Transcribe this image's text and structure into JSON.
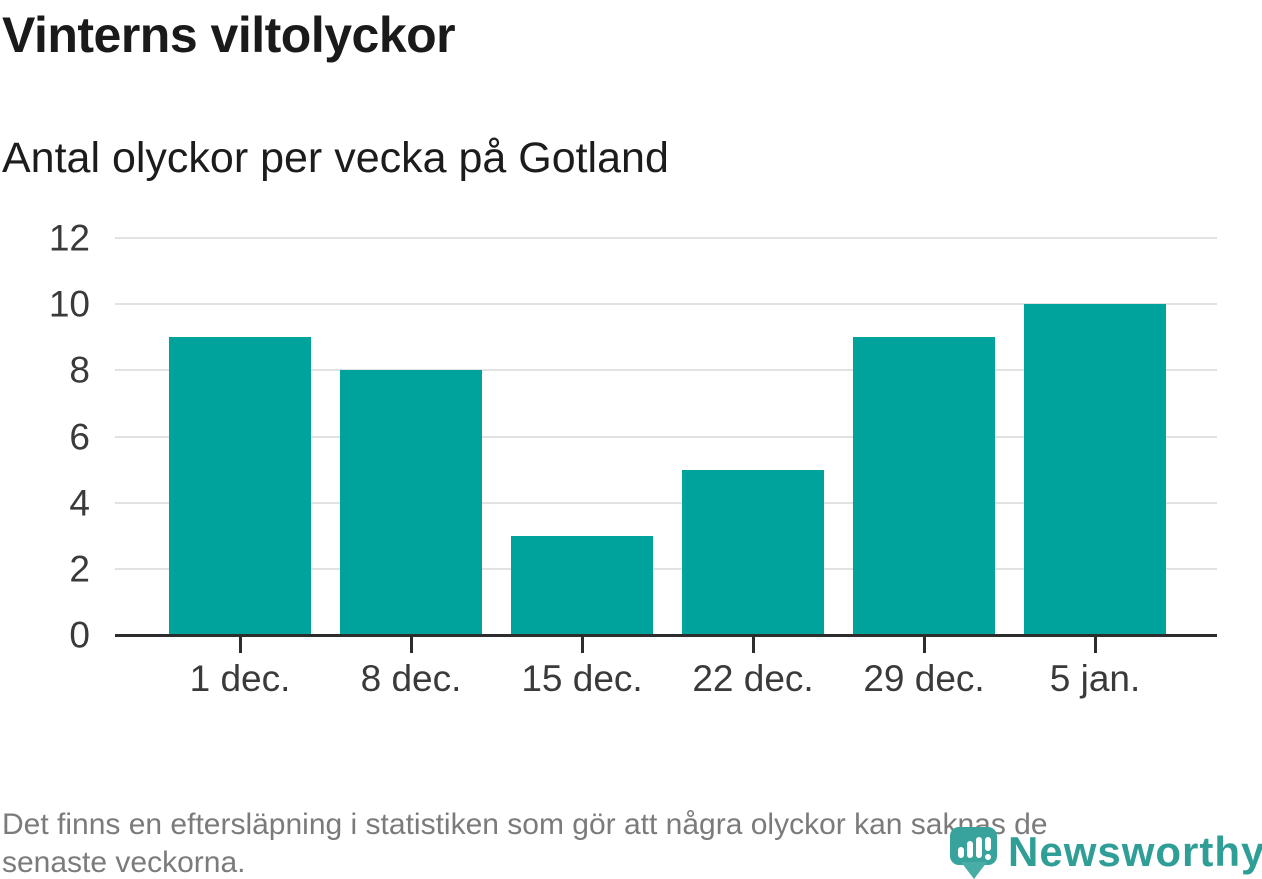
{
  "header": {
    "title": "Vinterns viltolyckor",
    "subtitle": "Antal olyckor per vecka på Gotland"
  },
  "chart_data": {
    "type": "bar",
    "title": "Vinterns viltolyckor",
    "subtitle": "Antal olyckor per vecka på Gotland",
    "categories": [
      "1 dec.",
      "8 dec.",
      "15 dec.",
      "22 dec.",
      "29 dec.",
      "5 jan."
    ],
    "values": [
      9,
      8,
      3,
      5,
      9,
      10
    ],
    "xlabel": "",
    "ylabel": "",
    "ylim": [
      0,
      12
    ],
    "yticks": [
      0,
      2,
      4,
      6,
      8,
      10,
      12
    ],
    "grid": "horizontal-only",
    "legend": "none",
    "bar_color": "#00a39b"
  },
  "footer": {
    "note_line1": "Det finns en eftersläpning i statistiken som gör att några olyckor kan saknas de",
    "note_line2": "senaste veckorna."
  },
  "logo": {
    "brand": "Newsworthy",
    "icon": "newsworthy-pin-barchart-icon"
  },
  "colors": {
    "bar": "#00a39b",
    "axis": "#2d2d2d",
    "gridline": "#e2e2e2",
    "title_text": "#1a1a1a",
    "axis_text": "#3a3a3a",
    "footnote_text": "#7b7b7b",
    "brand_teal": "#2f9e96"
  }
}
